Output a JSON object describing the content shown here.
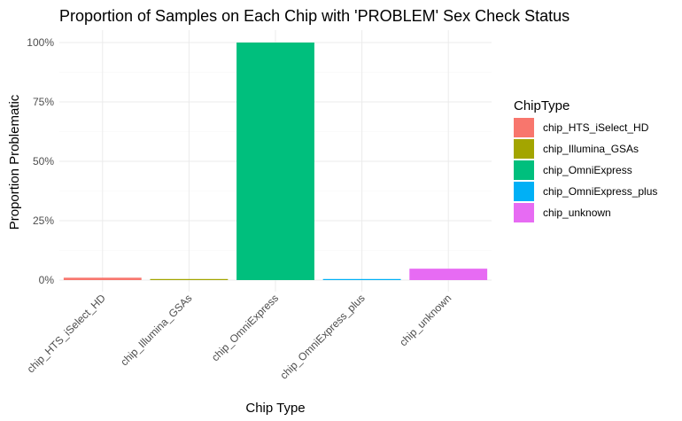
{
  "chart_data": {
    "type": "bar",
    "title": "Proportion of Samples on Each Chip with 'PROBLEM' Sex Check Status",
    "xlabel": "Chip Type",
    "ylabel": "Proportion Problematic",
    "categories": [
      "chip_HTS_iSelect_HD",
      "chip_Illumina_GSAs",
      "chip_OmniExpress",
      "chip_OmniExpress_plus",
      "chip_unknown"
    ],
    "values": [
      0.01,
      0.004,
      1.0,
      0.003,
      0.048
    ],
    "colors": [
      "#F8766D",
      "#A3A500",
      "#00BF7D",
      "#00B0F6",
      "#E76BF3"
    ],
    "ylim": [
      0,
      1.0
    ],
    "yticks": [
      0,
      0.25,
      0.5,
      0.75,
      1.0
    ],
    "ytick_labels": [
      "0%",
      "25%",
      "50%",
      "75%",
      "100%"
    ],
    "grid": true,
    "legend": {
      "title": "ChipType",
      "position": "right",
      "entries": [
        "chip_HTS_iSelect_HD",
        "chip_Illumina_GSAs",
        "chip_OmniExpress",
        "chip_OmniExpress_plus",
        "chip_unknown"
      ]
    }
  }
}
